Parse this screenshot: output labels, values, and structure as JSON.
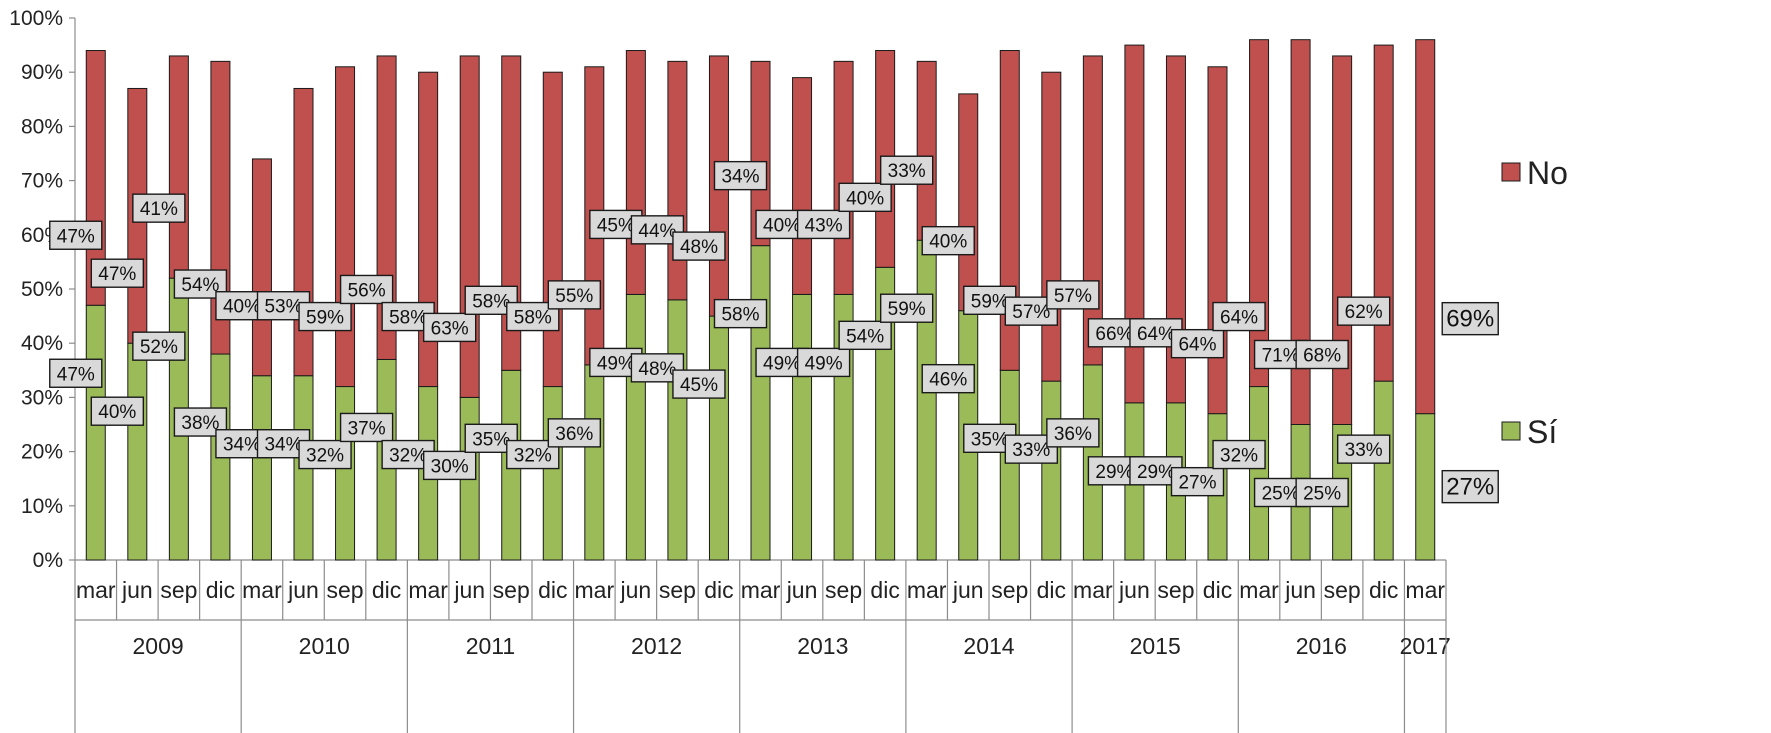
{
  "chart_data": {
    "type": "bar",
    "stacked": true,
    "ylim": [
      0,
      100
    ],
    "yticks": [
      "0%",
      "10%",
      "20%",
      "30%",
      "40%",
      "50%",
      "60%",
      "70%",
      "80%",
      "90%",
      "100%"
    ],
    "categories": [
      "mar",
      "jun",
      "sep",
      "dic",
      "mar",
      "jun",
      "sep",
      "dic",
      "mar",
      "jun",
      "sep",
      "dic",
      "mar",
      "jun",
      "sep",
      "dic",
      "mar",
      "jun",
      "sep",
      "dic",
      "mar",
      "jun",
      "sep",
      "dic",
      "mar",
      "jun",
      "sep",
      "dic",
      "mar",
      "jun",
      "sep",
      "dic",
      "mar"
    ],
    "years": [
      {
        "label": "2009",
        "count": 4
      },
      {
        "label": "2010",
        "count": 4
      },
      {
        "label": "2011",
        "count": 4
      },
      {
        "label": "2012",
        "count": 4
      },
      {
        "label": "2013",
        "count": 4
      },
      {
        "label": "2014",
        "count": 4
      },
      {
        "label": "2015",
        "count": 4
      },
      {
        "label": "2016",
        "count": 4
      },
      {
        "label": "2017",
        "count": 1
      }
    ],
    "series": [
      {
        "name": "Sí",
        "color": "#9bbb59",
        "values": [
          47,
          40,
          52,
          38,
          34,
          34,
          32,
          37,
          32,
          30,
          35,
          32,
          36,
          49,
          48,
          45,
          58,
          49,
          49,
          54,
          59,
          46,
          35,
          33,
          36,
          29,
          29,
          27,
          32,
          25,
          25,
          33,
          27
        ]
      },
      {
        "name": "No",
        "color": "#c0504d",
        "values": [
          47,
          47,
          41,
          54,
          40,
          53,
          59,
          56,
          58,
          63,
          58,
          58,
          55,
          45,
          44,
          48,
          34,
          40,
          43,
          40,
          33,
          40,
          59,
          57,
          57,
          66,
          64,
          64,
          64,
          71,
          68,
          62,
          69
        ]
      }
    ],
    "data_labels_placement": "boxed, near segment top",
    "legend": "right",
    "grid": false
  }
}
